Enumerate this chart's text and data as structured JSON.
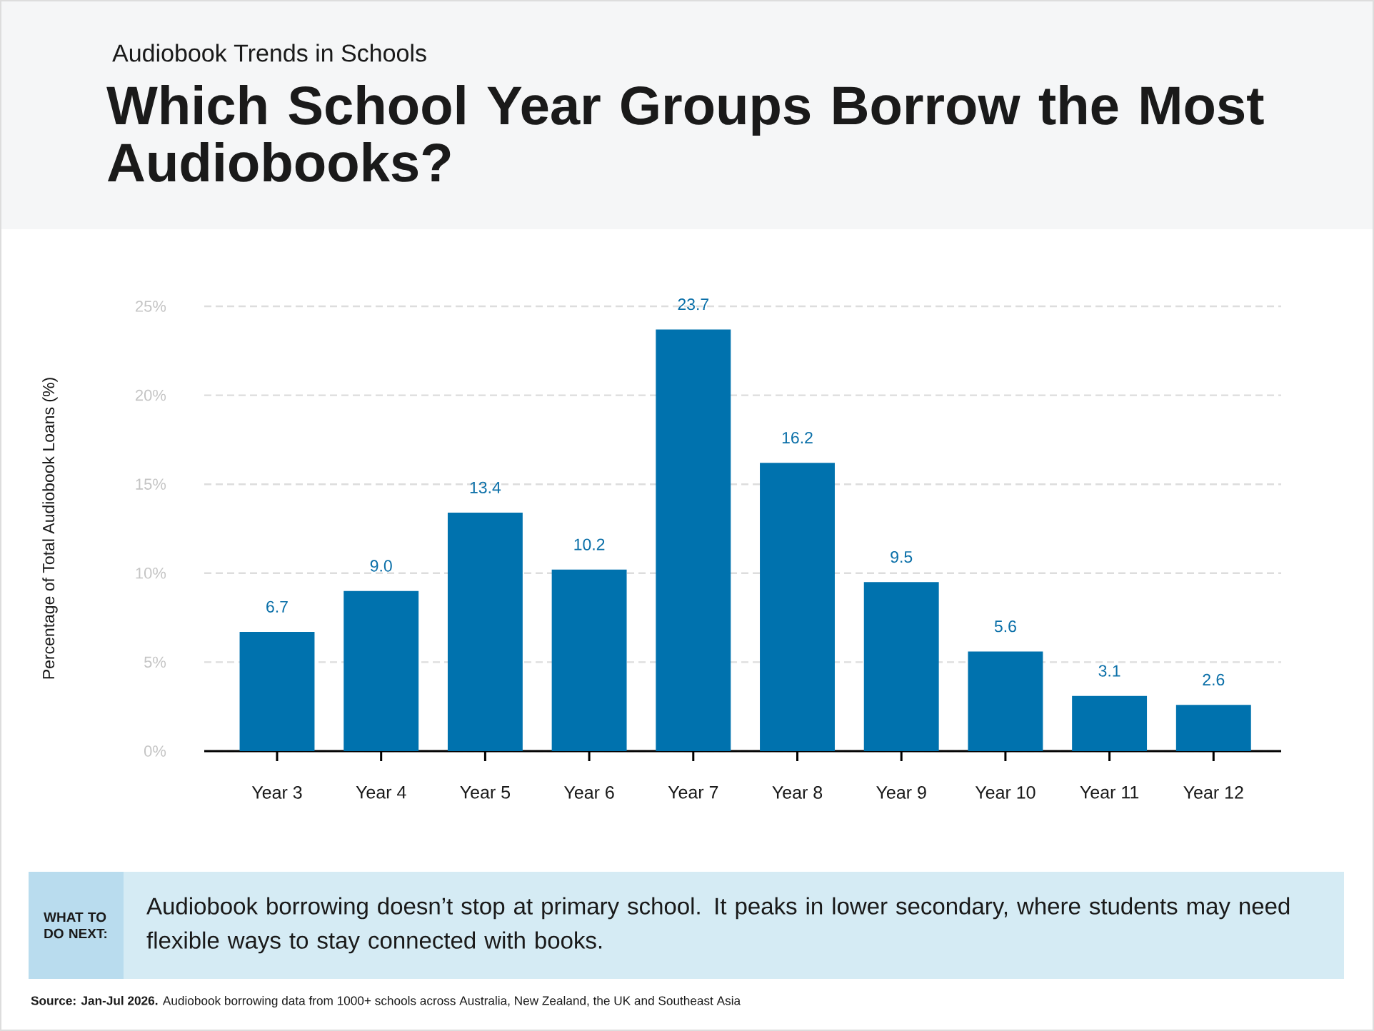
{
  "chart_data": {
    "type": "bar",
    "subtitle": "Audiobook Trends in Schools",
    "title": "Which School Year Groups Borrow the Most Audiobooks?",
    "ylabel": "Percentage of Total Audiobook Loans (%)",
    "categories": [
      "Year 3",
      "Year 4",
      "Year 5",
      "Year 6",
      "Year 7",
      "Year 8",
      "Year 9",
      "Year 10",
      "Year 11",
      "Year 12"
    ],
    "values": [
      6.7,
      9.0,
      13.4,
      10.2,
      23.7,
      16.2,
      9.5,
      5.6,
      3.1,
      2.6
    ],
    "value_labels": [
      "6.7",
      "9.0",
      "13.4",
      "10.2",
      "23.7",
      "16.2",
      "9.5",
      "5.6",
      "3.1",
      "2.6"
    ],
    "color": "#0072ae",
    "ylim": [
      0,
      25
    ],
    "yticks": [
      {
        "value": 0,
        "label": "0%"
      },
      {
        "value": 5,
        "label": "5%"
      },
      {
        "value": 10,
        "label": "10%"
      },
      {
        "value": 15,
        "label": "15%"
      },
      {
        "value": 20,
        "label": "20%"
      },
      {
        "value": 25,
        "label": "25%"
      }
    ],
    "grid": "y",
    "annotations": [
      "WHAT TO DO NEXT:",
      "Audiobook borrowing doesn’t stop at primary school. It peaks in lower secondary, where students may need flexible ways to stay connected with books.",
      "**Source: Jan-Jul 2026.** Audiobook borrowing data from 1000+ schools across Australia, New Zealand, the UK and Southeast Asia"
    ]
  }
}
